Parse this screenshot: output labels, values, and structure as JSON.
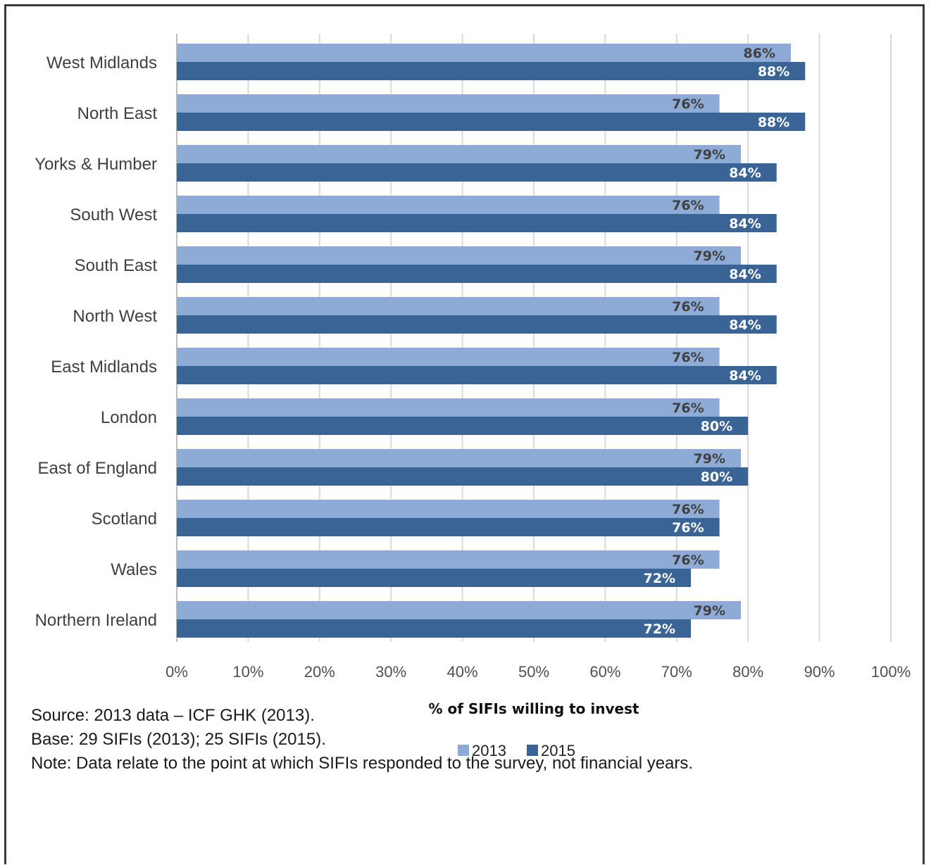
{
  "chart_data": {
    "type": "bar",
    "orientation": "horizontal",
    "categories": [
      "West Midlands",
      "North East",
      "Yorks & Humber",
      "South West",
      "South East",
      "North West",
      "East Midlands",
      "London",
      "East of England",
      "Scotland",
      "Wales",
      "Northern Ireland"
    ],
    "series": [
      {
        "name": "2013",
        "color": "#8eaad6",
        "label_color": "#404040",
        "values": [
          86,
          76,
          79,
          76,
          79,
          76,
          76,
          76,
          79,
          76,
          76,
          79
        ],
        "labels": [
          "86%",
          "76%",
          "79%",
          "76%",
          "79%",
          "76%",
          "76%",
          "76%",
          "79%",
          "76%",
          "76%",
          "79%"
        ]
      },
      {
        "name": "2015",
        "color": "#3b6496",
        "label_color": "#ffffff",
        "values": [
          88,
          88,
          84,
          84,
          84,
          84,
          84,
          80,
          80,
          76,
          72,
          72
        ],
        "labels": [
          "88%",
          "88%",
          "84%",
          "84%",
          "84%",
          "84%",
          "84%",
          "80%",
          "80%",
          "76%",
          "72%",
          "72%"
        ]
      }
    ],
    "xlim": [
      0,
      100
    ],
    "xticks": [
      "0%",
      "10%",
      "20%",
      "30%",
      "40%",
      "50%",
      "60%",
      "70%",
      "80%",
      "90%",
      "100%"
    ],
    "xlabel": "% of SIFIs willing to invest",
    "ylabel": "",
    "grid": "vertical",
    "legend_position": "bottom"
  },
  "notes": [
    "Source: 2013 data – ICF GHK (2013).",
    "Base: 29 SIFIs (2013); 25 SIFIs (2015).",
    "Note: Data relate to the point at which SIFIs responded to the survey, not financial years."
  ]
}
